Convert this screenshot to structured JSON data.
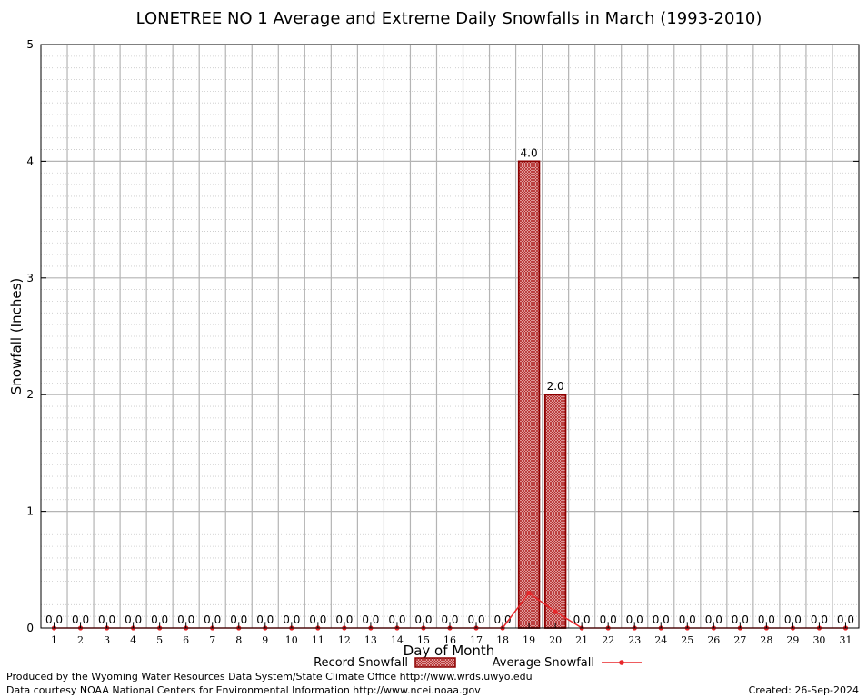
{
  "chart_data": {
    "type": "bar",
    "title": "LONETREE NO 1 Average and Extreme Daily Snowfalls in March (1993-2010)",
    "xlabel": "Day of Month",
    "ylabel": "Snowfall (Inches)",
    "ylim": [
      0,
      5
    ],
    "yticks": [
      "0",
      "1",
      "2",
      "3",
      "4",
      "5"
    ],
    "grid": true,
    "legend_position": "bottom-center",
    "categories": [
      "1",
      "2",
      "3",
      "4",
      "5",
      "6",
      "7",
      "8",
      "9",
      "10",
      "11",
      "12",
      "13",
      "14",
      "15",
      "16",
      "17",
      "18",
      "19",
      "20",
      "21",
      "22",
      "23",
      "24",
      "25",
      "26",
      "27",
      "28",
      "29",
      "30",
      "31"
    ],
    "series": [
      {
        "name": "Record Snowfall",
        "kind": "bar",
        "color": "#b22222",
        "values": [
          0,
          0,
          0,
          0,
          0,
          0,
          0,
          0,
          0,
          0,
          0,
          0,
          0,
          0,
          0,
          0,
          0,
          0,
          4.0,
          2.0,
          0,
          0,
          0,
          0,
          0,
          0,
          0,
          0,
          0,
          0,
          0
        ],
        "labels": [
          "0.0",
          "0.0",
          "0.0",
          "0.0",
          "0.0",
          "0.0",
          "0.0",
          "0.0",
          "0.0",
          "0.0",
          "0.0",
          "0.0",
          "0.0",
          "0.0",
          "0.0",
          "0.0",
          "0.0",
          "0.0",
          "4.0",
          "2.0",
          "0.0",
          "0.0",
          "0.0",
          "0.0",
          "0.0",
          "0.0",
          "0.0",
          "0.0",
          "0.0",
          "0.0",
          "0.0"
        ]
      },
      {
        "name": "Average Snowfall",
        "kind": "line",
        "color": "#e8262a",
        "values": [
          0,
          0,
          0,
          0,
          0,
          0,
          0,
          0,
          0,
          0,
          0,
          0,
          0,
          0,
          0,
          0,
          0,
          0,
          0.3,
          0.14,
          0,
          0,
          0,
          0,
          0,
          0,
          0,
          0,
          0,
          0,
          0
        ]
      }
    ]
  },
  "footer": {
    "produced_by": "Produced by the Wyoming Water Resources Data System/State Climate Office http://www.wrds.uwyo.edu",
    "data_courtesy": "Data courtesy NOAA National Centers for Environmental Information http://www.ncei.noaa.gov",
    "created": "Created:  26-Sep-2024"
  }
}
